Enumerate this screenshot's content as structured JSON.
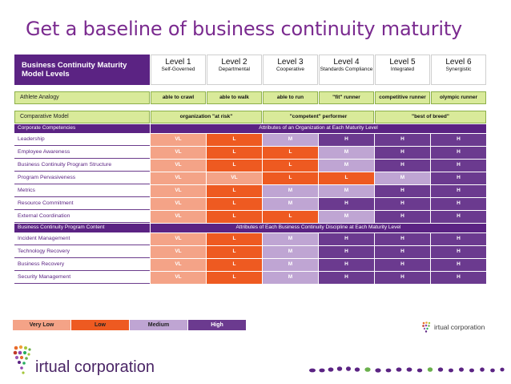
{
  "title": "Get a baseline of business continuity maturity",
  "header": {
    "title": "Business Continuity Maturity Model Levels",
    "levels": [
      {
        "name": "Level 1",
        "sub": "Self-Governed"
      },
      {
        "name": "Level 2",
        "sub": "Departmental"
      },
      {
        "name": "Level 3",
        "sub": "Cooperative"
      },
      {
        "name": "Level 4",
        "sub": "Standards Compliance"
      },
      {
        "name": "Level 5",
        "sub": "Integrated"
      },
      {
        "name": "Level 6",
        "sub": "Synergistic"
      }
    ]
  },
  "athlete": {
    "label": "Athlete Analogy",
    "values": [
      "able to crawl",
      "able to walk",
      "able to run",
      "\"fit\" runner",
      "competitive runner",
      "olympic runner"
    ]
  },
  "comparative": {
    "label": "Comparative Model",
    "values": [
      "organization \"at risk\"",
      "\"competent\" performer",
      "\"best of breed\""
    ]
  },
  "section1": {
    "label": "Corporate Competencies",
    "caption": "Attributes of an Organization at Each Maturity Level",
    "rows": [
      {
        "label": "Leadership",
        "values": [
          "VL",
          "L",
          "M",
          "H",
          "H",
          "H"
        ]
      },
      {
        "label": "Employee Awareness",
        "values": [
          "VL",
          "L",
          "L",
          "M",
          "H",
          "H"
        ]
      },
      {
        "label": "Business Continuity Program Structure",
        "values": [
          "VL",
          "L",
          "L",
          "M",
          "H",
          "H"
        ]
      },
      {
        "label": "Program Pervasiveness",
        "values": [
          "VL",
          "VL",
          "L",
          "L",
          "M",
          "H"
        ]
      },
      {
        "label": "Metrics",
        "values": [
          "VL",
          "L",
          "M",
          "M",
          "H",
          "H"
        ]
      },
      {
        "label": "Resource Commitment",
        "values": [
          "VL",
          "L",
          "M",
          "H",
          "H",
          "H"
        ]
      },
      {
        "label": "External Coordination",
        "values": [
          "VL",
          "L",
          "L",
          "M",
          "H",
          "H"
        ]
      }
    ]
  },
  "section2": {
    "label": "Business Continuity Program Content",
    "caption": "Attributes of Each Business Continuity Discipline at Each Maturity Level",
    "rows": [
      {
        "label": "Incident Management",
        "values": [
          "VL",
          "L",
          "M",
          "H",
          "H",
          "H"
        ]
      },
      {
        "label": "Technology Recovery",
        "values": [
          "VL",
          "L",
          "M",
          "H",
          "H",
          "H"
        ]
      },
      {
        "label": "Business Recovery",
        "values": [
          "VL",
          "L",
          "M",
          "H",
          "H",
          "H"
        ]
      },
      {
        "label": "Security Management",
        "values": [
          "VL",
          "L",
          "M",
          "H",
          "H",
          "H"
        ]
      }
    ]
  },
  "legend": [
    {
      "label": "Very Low",
      "color": "#f4a387"
    },
    {
      "label": "Low",
      "color": "#ee5a21"
    },
    {
      "label": "Medium",
      "color": "#bfa5d3"
    },
    {
      "label": "High",
      "color": "#6b3a8f"
    }
  ],
  "logo": {
    "brand": "virtual corporation",
    "text": "irtual corporation",
    "icon": "virtual-corporation-dots-icon"
  },
  "colors": {
    "purple": "#5b2383",
    "green": "#d9ea9a",
    "orange": "#ee5a21"
  }
}
